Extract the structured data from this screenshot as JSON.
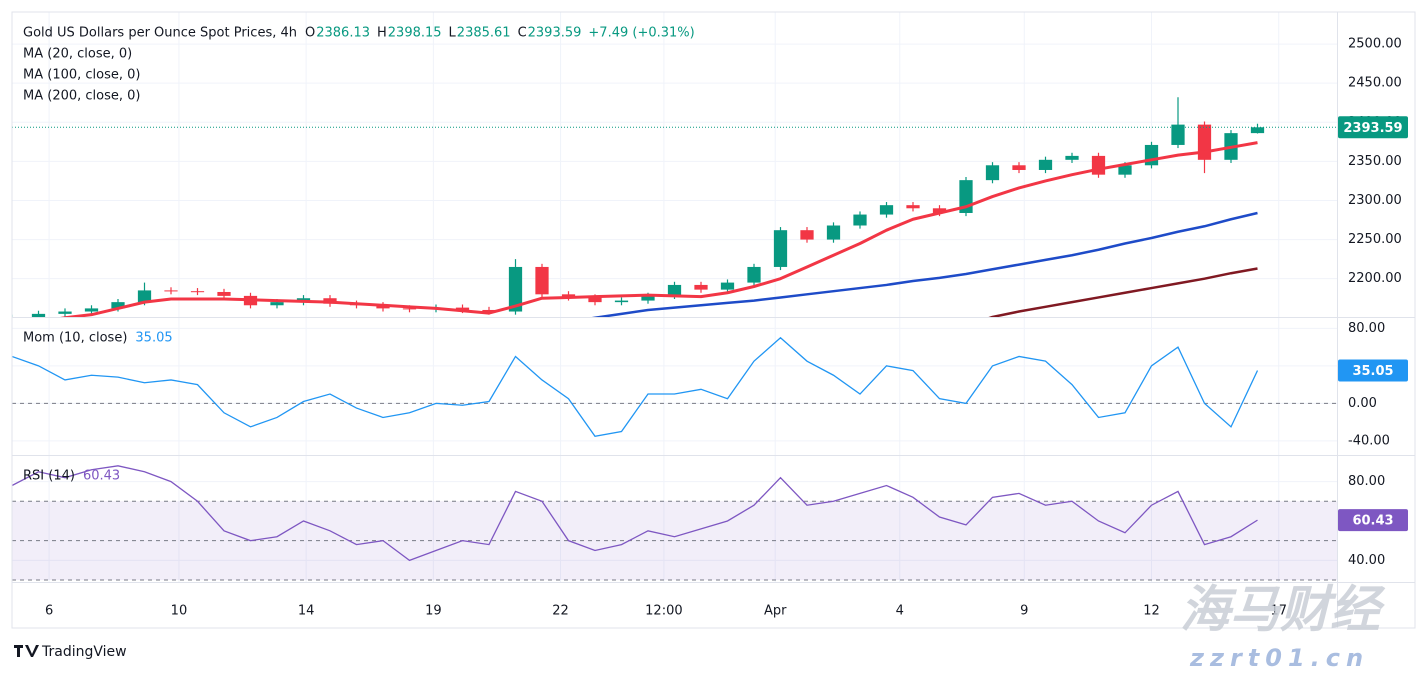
{
  "chart_data": [
    {
      "type": "candlestick",
      "title": "Gold US Dollars per Ounce Spot Prices, 4h",
      "ohlc_labels": [
        "O",
        "H",
        "L",
        "C"
      ],
      "change_label": "+7.49 (+0.31%)",
      "open": [
        2148,
        2150,
        2155,
        2158,
        2162,
        2170,
        2185,
        2184,
        2183,
        2178,
        2166,
        2170,
        2175,
        2168,
        2166,
        2162,
        2161,
        2163,
        2160,
        2158,
        2215,
        2180,
        2176,
        2170,
        2172,
        2178,
        2192,
        2186,
        2195,
        2215,
        2262,
        2250,
        2268,
        2282,
        2294,
        2290,
        2284,
        2326,
        2345,
        2339,
        2352,
        2357,
        2333,
        2345,
        2371,
        2397,
        2352,
        2386.13
      ],
      "high": [
        2154,
        2159,
        2162,
        2166,
        2174,
        2195,
        2189,
        2188,
        2187,
        2182,
        2174,
        2179,
        2179,
        2172,
        2170,
        2166,
        2167,
        2167,
        2164,
        2225,
        2219,
        2184,
        2180,
        2176,
        2182,
        2196,
        2196,
        2199,
        2219,
        2266,
        2266,
        2272,
        2286,
        2298,
        2298,
        2294,
        2330,
        2349,
        2349,
        2356,
        2361,
        2361,
        2349,
        2375,
        2432,
        2401,
        2390,
        2398.15
      ],
      "low": [
        2144,
        2146,
        2151,
        2154,
        2158,
        2166,
        2180,
        2179,
        2174,
        2162,
        2162,
        2166,
        2164,
        2162,
        2158,
        2157,
        2157,
        2156,
        2154,
        2154,
        2176,
        2172,
        2166,
        2166,
        2168,
        2174,
        2182,
        2182,
        2191,
        2211,
        2246,
        2246,
        2264,
        2278,
        2286,
        2280,
        2280,
        2322,
        2335,
        2335,
        2348,
        2329,
        2329,
        2341,
        2367,
        2335,
        2348,
        2385.61
      ],
      "close": [
        2150,
        2155,
        2158,
        2162,
        2170,
        2185,
        2184,
        2183,
        2178,
        2166,
        2170,
        2175,
        2168,
        2166,
        2162,
        2161,
        2163,
        2160,
        2158,
        2215,
        2180,
        2176,
        2170,
        2172,
        2178,
        2192,
        2186,
        2195,
        2215,
        2262,
        2250,
        2268,
        2282,
        2294,
        2290,
        2284,
        2326,
        2345,
        2339,
        2352,
        2357,
        2333,
        2345,
        2371,
        2397,
        2352,
        2386.1,
        2393.59
      ],
      "up_color": "#089981",
      "down_color": "#f23645",
      "series": [
        {
          "name": "MA (20, close, 0)",
          "color": "#f23645",
          "values": [
            2140,
            2145,
            2150,
            2154,
            2162,
            2170,
            2174,
            2174,
            2174,
            2173,
            2172,
            2171,
            2170,
            2168,
            2166,
            2164,
            2162,
            2159,
            2156,
            2165,
            2175,
            2176,
            2177,
            2178,
            2179,
            2178,
            2177,
            2182,
            2190,
            2200,
            2215,
            2230,
            2245,
            2262,
            2276,
            2284,
            2292,
            2305,
            2316,
            2325,
            2333,
            2340,
            2346,
            2352,
            2358,
            2362,
            2368,
            2374
          ]
        },
        {
          "name": "MA (100, close, 0)",
          "color": "#1e4bc8",
          "values": [
            null,
            null,
            null,
            null,
            null,
            null,
            null,
            null,
            null,
            null,
            null,
            null,
            null,
            null,
            null,
            null,
            2128,
            2131,
            2134,
            2137,
            2140,
            2145,
            2150,
            2155,
            2160,
            2163,
            2166,
            2169,
            2172,
            2176,
            2180,
            2184,
            2188,
            2192,
            2197,
            2201,
            2206,
            2212,
            2218,
            2224,
            2230,
            2237,
            2245,
            2252,
            2260,
            2267,
            2276,
            2284
          ]
        },
        {
          "name": "MA (200, close, 0)",
          "color": "#801922",
          "values": [
            null,
            null,
            null,
            null,
            null,
            null,
            null,
            null,
            null,
            null,
            null,
            null,
            null,
            null,
            null,
            null,
            null,
            null,
            null,
            null,
            null,
            null,
            null,
            null,
            null,
            null,
            null,
            null,
            null,
            null,
            null,
            null,
            null,
            null,
            null,
            null,
            2140,
            2151,
            2158,
            2164,
            2170,
            2176,
            2182,
            2188,
            2194,
            2200,
            2207,
            2213
          ]
        }
      ],
      "ylim": [
        2151,
        2541
      ],
      "yticks": [
        {
          "value": 2200,
          "label": "2200.00"
        },
        {
          "value": 2250,
          "label": "2250.00"
        },
        {
          "value": 2300,
          "label": "2300.00"
        },
        {
          "value": 2350,
          "label": "2350.00"
        },
        {
          "value": 2400,
          "label": "2400.00"
        },
        {
          "value": 2450,
          "label": "2450.00"
        },
        {
          "value": 2500,
          "label": "2500.00"
        }
      ],
      "grid": true
    },
    {
      "type": "line",
      "series": [
        {
          "name": "Mom (10, close)",
          "color": "#2196f3",
          "values": [
            50,
            40,
            25,
            30,
            28,
            22,
            25,
            20,
            -10,
            -25,
            -15,
            2,
            10,
            -5,
            -15,
            -10,
            0,
            -2,
            2,
            50,
            25,
            5,
            -35,
            -30,
            10,
            10,
            15,
            5,
            45,
            70,
            45,
            30,
            10,
            40,
            35,
            5,
            0,
            40,
            50,
            45,
            20,
            -15,
            -10,
            40,
            60,
            0,
            -25,
            35.05
          ]
        }
      ],
      "ylim": [
        -55,
        91
      ],
      "yticks": [
        {
          "value": -40,
          "label": "-40.00"
        },
        {
          "value": 0,
          "label": "0.00"
        },
        {
          "value": 40,
          "label": "40.00"
        },
        {
          "value": 80,
          "label": "80.00"
        }
      ],
      "reference_lines": [
        0
      ],
      "grid": true
    },
    {
      "type": "line",
      "series": [
        {
          "name": "RSI (14)",
          "color": "#7e57c2",
          "values": [
            78,
            85,
            82,
            86,
            88,
            85,
            80,
            70,
            55,
            50,
            52,
            60,
            55,
            48,
            50,
            40,
            45,
            50,
            48,
            75,
            70,
            50,
            45,
            48,
            55,
            52,
            56,
            60,
            68,
            82,
            68,
            70,
            74,
            78,
            72,
            62,
            58,
            72,
            74,
            68,
            70,
            60,
            54,
            68,
            75,
            48,
            52,
            60.43
          ]
        }
      ],
      "ylim": [
        29,
        93
      ],
      "yticks": [
        {
          "value": 40,
          "label": "40.00"
        },
        {
          "value": 80,
          "label": "80.00"
        }
      ],
      "band": [
        30,
        70
      ],
      "reference_lines": [
        30,
        50,
        70
      ],
      "xlim": [
        0,
        50
      ],
      "xticks": [
        {
          "value": 1.4,
          "label": "6"
        },
        {
          "value": 6.3,
          "label": "10"
        },
        {
          "value": 11.1,
          "label": "14"
        },
        {
          "value": 15.9,
          "label": "19"
        },
        {
          "value": 20.7,
          "label": "22"
        },
        {
          "value": 24.6,
          "label": "12:00"
        },
        {
          "value": 28.8,
          "label": "Apr"
        },
        {
          "value": 33.5,
          "label": "4"
        },
        {
          "value": 38.2,
          "label": "9"
        },
        {
          "value": 43,
          "label": "12"
        },
        {
          "value": 47.8,
          "label": "17"
        }
      ],
      "grid": true
    }
  ],
  "branding": "TradingView",
  "watermark": {
    "title": "海马财经",
    "url": "zzrt01.cn"
  }
}
